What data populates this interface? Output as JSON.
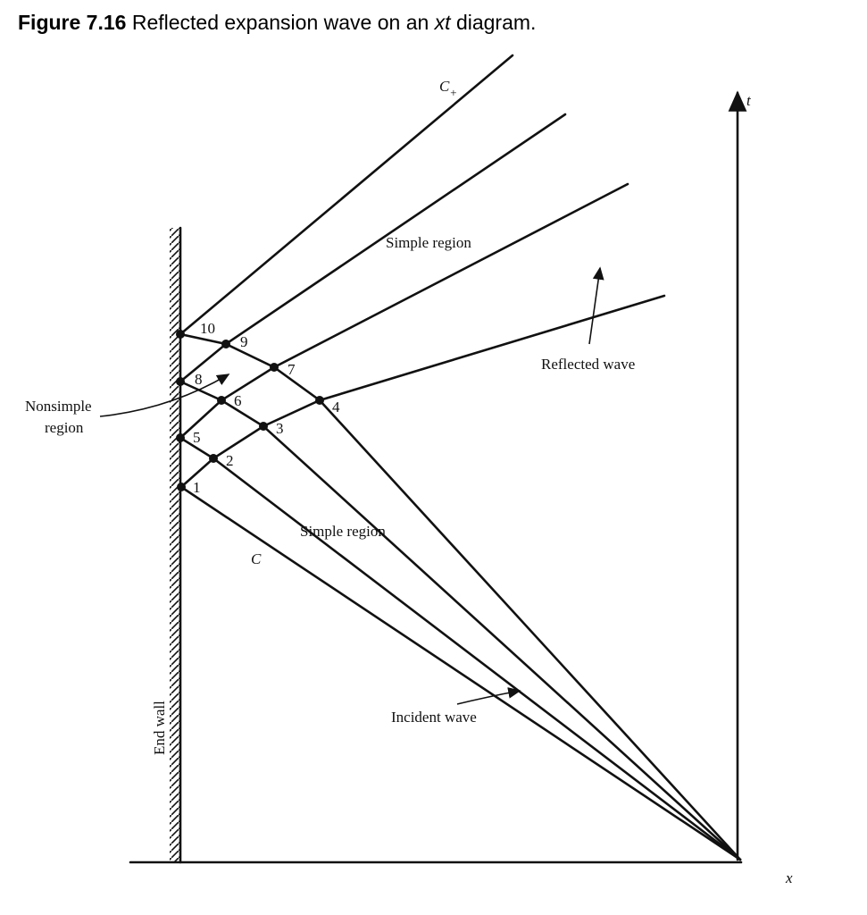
{
  "caption": {
    "figure_label": "Figure 7.16",
    "text_before": "Reflected expansion wave on an ",
    "italic": "xt",
    "text_after": " diagram."
  },
  "labels": {
    "c_plus": "C",
    "c_plus_sub": "+",
    "c_minus": "C",
    "t_axis": "t",
    "x_axis": "x",
    "simple_region_top": "Simple region",
    "simple_region_bottom": "Simple region",
    "reflected_wave": "Reflected wave",
    "incident_wave": "Incident wave",
    "nonsimple_line1": "Nonsimple",
    "nonsimple_line2": "region",
    "end_wall": "End wall"
  },
  "points": [
    "1",
    "2",
    "3",
    "4",
    "5",
    "6",
    "7",
    "8",
    "9",
    "10"
  ]
}
